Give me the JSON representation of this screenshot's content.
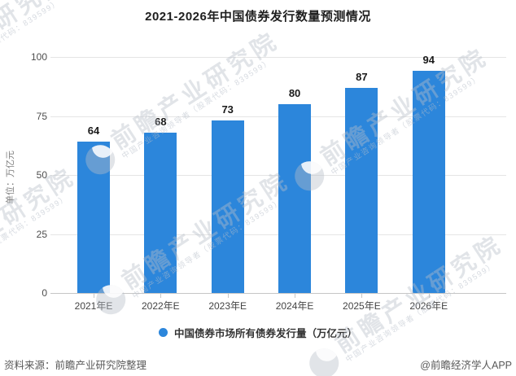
{
  "title": "2021-2026年中国债券发行数量预测情况",
  "chart_data": {
    "type": "bar",
    "categories": [
      "2021年E",
      "2022年E",
      "2023年E",
      "2024年E",
      "2025年E",
      "2026年E"
    ],
    "values": [
      64,
      68,
      73,
      80,
      87,
      94
    ],
    "title": "2021-2026年中国债券发行数量预测情况",
    "xlabel": "",
    "ylabel": "单位：万亿元",
    "ylim": [
      0,
      100
    ],
    "yticks": [
      0,
      25,
      50,
      75,
      100
    ],
    "grid": true,
    "legend": [
      "中国债券市场所有债券发行量（万亿元）"
    ],
    "legend_position": "bottom",
    "bar_color": "#2c86db"
  },
  "y_axis": {
    "unit_label": "单位：万亿元"
  },
  "legend": {
    "label": "中国债券市场所有债券发行量（万亿元）"
  },
  "footer": {
    "source": "资料来源：前瞻产业研究院整理",
    "credit": "@前瞻经济学人APP"
  },
  "watermark": {
    "main": "前瞻产业研究院",
    "sub": "中国产业咨询领导者（股票代码：839599）"
  },
  "colors": {
    "bar": "#2c86db",
    "grid": "#e5e5e5",
    "axis": "#c6c6c6",
    "value_label": "#1a1a1a",
    "tick_label": "#4d4d4d"
  }
}
